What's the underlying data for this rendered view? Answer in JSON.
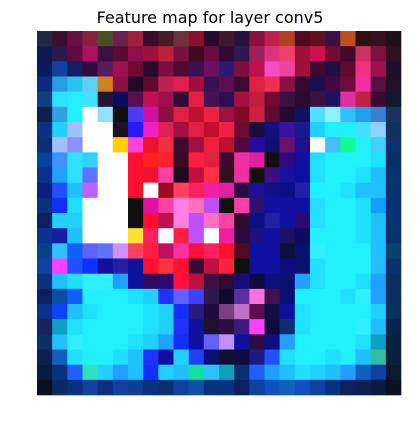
{
  "chart_data": {
    "type": "heatmap",
    "title": "Feature map for layer conv5",
    "axes_visible": false,
    "grid": false,
    "rows": 24,
    "cols": 24,
    "pixels": [
      [
        "#1e2a44",
        "#3a1030",
        "#6a1040",
        "#8a2040",
        "#4a5020",
        "#6a2050",
        "#a0203c",
        "#3a0a2a",
        "#4a1a2a",
        "#703040",
        "#8a1030",
        "#2a0a2a",
        "#401830",
        "#2a1040",
        "#8a1040",
        "#c02050",
        "#b04020",
        "#500a20",
        "#601020",
        "#3a1040",
        "#c05020",
        "#301010",
        "#3a1020",
        "#201018"
      ],
      [
        "#101850",
        "#2a1a50",
        "#600a40",
        "#b01060",
        "#3a1040",
        "#5a0a30",
        "#8a1050",
        "#a0103c",
        "#c0203c",
        "#7a1040",
        "#400a20",
        "#6a0a40",
        "#300a30",
        "#2a1a50",
        "#a0205a",
        "#e03080",
        "#f04070",
        "#a0103c",
        "#d01050",
        "#700a30",
        "#400a28",
        "#d03060",
        "#801040",
        "#301020"
      ],
      [
        "#0a1a60",
        "#1040a0",
        "#102060",
        "#300a40",
        "#5a1a60",
        "#a01050",
        "#700a30",
        "#2a0a28",
        "#7a1040",
        "#500a30",
        "#3a1050",
        "#6a1060",
        "#2a1a70",
        "#7a1040",
        "#c01050",
        "#f050c0",
        "#f040a0",
        "#a0103c",
        "#400a30",
        "#201040",
        "#600a30",
        "#f03080",
        "#a01050",
        "#1a1030"
      ],
      [
        "#0a2a80",
        "#20a0e0",
        "#30c0f0",
        "#60d0f0",
        "#d08020",
        "#8a1040",
        "#200a28",
        "#600a30",
        "#c02050",
        "#e02050",
        "#a0103c",
        "#3a1050",
        "#5a1050",
        "#400a30",
        "#e02040",
        "#f03050",
        "#8a1040",
        "#300a30",
        "#1a1050",
        "#400a40",
        "#700a40",
        "#f030a0",
        "#5a1040",
        "#201028"
      ],
      [
        "#104080",
        "#30e0ff",
        "#20f0ff",
        "#40e0ff",
        "#201830",
        "#0a0a60",
        "#5a1050",
        "#c01050",
        "#a01050",
        "#300a30",
        "#e02040",
        "#4a1050",
        "#2a1050",
        "#a01040",
        "#c02040",
        "#700a30",
        "#3a1040",
        "#2a0a30",
        "#3a1040",
        "#201060",
        "#e030a0",
        "#c0204a",
        "#3a0a30",
        "#101830"
      ],
      [
        "#0a2050",
        "#30a0e0",
        "#20f0ff",
        "#ffffff",
        "#90e0ff",
        "#101010",
        "#4a3aff",
        "#d010a0",
        "#8a1040",
        "#e02040",
        "#c01030",
        "#f02040",
        "#a01040",
        "#800a28",
        "#d02040",
        "#600a30",
        "#200a30",
        "#101060",
        "#50e0ff",
        "#90f0ff",
        "#30c0ff",
        "#20a0f0",
        "#3a80d0",
        "#1a3060"
      ],
      [
        "#0a3080",
        "#20d0ff",
        "#a0c0ff",
        "#ffffff",
        "#ffffff",
        "#201020",
        "#2a1aff",
        "#f020c0",
        "#e02050",
        "#a01040",
        "#e02040",
        "#c01030",
        "#f02040",
        "#700a30",
        "#200a40",
        "#101080",
        "#3a10a0",
        "#1a1a90",
        "#20d0ff",
        "#20f0ff",
        "#20f0ff",
        "#40e0ff",
        "#90d0ff",
        "#103060"
      ],
      [
        "#0a3070",
        "#a0c0ff",
        "#8a90ff",
        "#ffffff",
        "#ffffff",
        "#ffd000",
        "#ff40e0",
        "#f01030",
        "#f03040",
        "#400a30",
        "#a01040",
        "#f02040",
        "#c01030",
        "#500a40",
        "#2a0aa0",
        "#101070",
        "#6a1070",
        "#201090",
        "#ffffff",
        "#40c0ff",
        "#10ff90",
        "#20f0ff",
        "#40d0ff",
        "#103070"
      ],
      [
        "#0a40a0",
        "#4090ff",
        "#30e0ff",
        "#30d0ff",
        "#ffffff",
        "#ffffff",
        "#ff1030",
        "#ff2020",
        "#ff2030",
        "#3a0a20",
        "#ff2040",
        "#e02040",
        "#3a0a30",
        "#f030a0",
        "#e020a0",
        "#101010",
        "#300a80",
        "#1010a0",
        "#20e0ff",
        "#20f0ff",
        "#20f0ff",
        "#20f0ff",
        "#20e0ff",
        "#0a3060"
      ],
      [
        "#0a3090",
        "#20a0ff",
        "#30e0ff",
        "#6070ff",
        "#ffffff",
        "#ffffff",
        "#ff1030",
        "#f01030",
        "#ff40a0",
        "#200a20",
        "#c01040",
        "#ff3040",
        "#301020",
        "#f030a0",
        "#101010",
        "#3a1080",
        "#1a10a0",
        "#1010a0",
        "#20e0ff",
        "#20f0ff",
        "#20f0ff",
        "#20e0ff",
        "#20c0ff",
        "#0a3070"
      ],
      [
        "#0a2080",
        "#2050ff",
        "#20c0ff",
        "#c060ff",
        "#ffffff",
        "#ffffff",
        "#ff1030",
        "#ffffff",
        "#a00a20",
        "#ff4060",
        "#ff2060",
        "#f020a0",
        "#e020a0",
        "#2a0a40",
        "#1a1090",
        "#10108a",
        "#0a1080",
        "#2020a0",
        "#20f0ff",
        "#20f0ff",
        "#20e0ff",
        "#20c0ff",
        "#20c0ff",
        "#0a3070"
      ],
      [
        "#0a3080",
        "#1030ff",
        "#20e0ff",
        "#ffffff",
        "#ffffff",
        "#ffffff",
        "#101010",
        "#e010a0",
        "#ff40a0",
        "#ff80e0",
        "#ff70c0",
        "#c050ff",
        "#101010",
        "#ff40a0",
        "#2a1070",
        "#1010a0",
        "#1010a0",
        "#1010a0",
        "#20e0ff",
        "#20f0ff",
        "#20f0ff",
        "#20e0ff",
        "#10a0ff",
        "#0a3070"
      ],
      [
        "#0a2060",
        "#20d0ff",
        "#20d0ff",
        "#ffffff",
        "#ffffff",
        "#ffffff",
        "#101010",
        "#ff1030",
        "#c01050",
        "#ff80e0",
        "#c050ff",
        "#ff70c0",
        "#ff40a0",
        "#300a30",
        "#0a1080",
        "#2020a0",
        "#1010a0",
        "#2a0a70",
        "#20e0ff",
        "#20f0ff",
        "#20f0ff",
        "#20e0ff",
        "#20c0ff",
        "#0a3070"
      ],
      [
        "#0a3090",
        "#1020a0",
        "#20c0ff",
        "#ffffff",
        "#ffffff",
        "#ffffff",
        "#ffe030",
        "#ff2060",
        "#ffffff",
        "#ff2040",
        "#c050ff",
        "#ffffff",
        "#f020a0",
        "#2a0a40",
        "#1a1080",
        "#1010a0",
        "#201060",
        "#100a60",
        "#20f0ff",
        "#20f0ff",
        "#20f0ff",
        "#20e0ff",
        "#20c0ff",
        "#0a3070"
      ],
      [
        "#0a4090",
        "#30c0ff",
        "#1060ff",
        "#6060ff",
        "#6070ff",
        "#d090ff",
        "#ff4060",
        "#ff2040",
        "#c01060",
        "#ff30a0",
        "#ff1040",
        "#ff2060",
        "#ff1030",
        "#500a20",
        "#0a10a0",
        "#1010a0",
        "#101040",
        "#0a1070",
        "#30f0ff",
        "#20f0ff",
        "#20f0ff",
        "#20f0ff",
        "#20c0ff",
        "#0a4070"
      ],
      [
        "#1040a0",
        "#ff40ff",
        "#2050ff",
        "#1030ff",
        "#1010a0",
        "#2020a0",
        "#1010a0",
        "#ff1030",
        "#ff3040",
        "#ff1030",
        "#3a0a30",
        "#c01040",
        "#ff2040",
        "#101010",
        "#1010a0",
        "#1010a0",
        "#100a80",
        "#0a1070",
        "#20e0ff",
        "#20f0ff",
        "#20f0ff",
        "#20f0ff",
        "#20c0ff",
        "#0a3070"
      ],
      [
        "#0a3080",
        "#20c0ff",
        "#20e0ff",
        "#30f0ff",
        "#30f0ff",
        "#20a0ff",
        "#1010a0",
        "#300a60",
        "#2a0a70",
        "#ff1040",
        "#c01040",
        "#401040",
        "#300a30",
        "#1a0a80",
        "#100a40",
        "#0a1080",
        "#0a1070",
        "#20a0ff",
        "#20e0ff",
        "#20f0ff",
        "#20f0ff",
        "#20e0ff",
        "#20a0ff",
        "#0a3060"
      ],
      [
        "#0a2060",
        "#0a50a0",
        "#1060ff",
        "#20f0ff",
        "#20f0ff",
        "#20f0ff",
        "#20e0ff",
        "#20d0ff",
        "#2030ff",
        "#6060ff",
        "#4040ff",
        "#2a1a50",
        "#100a30",
        "#5a30a0",
        "#ff70e0",
        "#401050",
        "#0a1070",
        "#20f0ff",
        "#20f0ff",
        "#20f0ff",
        "#20e0ff",
        "#30f0ff",
        "#20a0ff",
        "#0a3060"
      ],
      [
        "#0a3090",
        "#1040ff",
        "#20c0ff",
        "#20e0ff",
        "#20f0ff",
        "#20f0ff",
        "#20f0ff",
        "#20e0ff",
        "#20d0ff",
        "#1030ff",
        "#2a1a80",
        "#200a40",
        "#7a4080",
        "#c070c0",
        "#5a1050",
        "#101040",
        "#1010a0",
        "#20e0ff",
        "#20f0ff",
        "#20f0ff",
        "#20f0ff",
        "#20f0ff",
        "#20d0ff",
        "#0a3060"
      ],
      [
        "#1a2060",
        "#10a0c0",
        "#20e0ff",
        "#20f0ff",
        "#20f0ff",
        "#20f0ff",
        "#20f0ff",
        "#20e0ff",
        "#20d0ff",
        "#2030ff",
        "#1010a0",
        "#201030",
        "#2a1040",
        "#3a1a80",
        "#ff40ff",
        "#100a40",
        "#0a3070",
        "#20e0ff",
        "#20f0ff",
        "#20f0ff",
        "#20f0ff",
        "#30f0ff",
        "#20c0ff",
        "#0a2050"
      ],
      [
        "#0a3060",
        "#20c0ff",
        "#30f0ff",
        "#20f0ff",
        "#20f0ff",
        "#20f0ff",
        "#20e0ff",
        "#20d0ff",
        "#20a0ff",
        "#1030ff",
        "#1010a0",
        "#6060ff",
        "#c090ff",
        "#1010a0",
        "#2a1040",
        "#0a1080",
        "#20a0ff",
        "#20f0ff",
        "#20f0ff",
        "#20f0ff",
        "#20f0ff",
        "#20e0ff",
        "#10a0c0",
        "#0a2040"
      ],
      [
        "#0a2050",
        "#1060c0",
        "#20e0ff",
        "#20f0ff",
        "#20f0ff",
        "#20e0ff",
        "#20c0ff",
        "#2030ff",
        "#1010a0",
        "#20d0ff",
        "#2040ff",
        "#0a1070",
        "#101030",
        "#100a40",
        "#1a1a80",
        "#2050ff",
        "#20e0ff",
        "#20f0ff",
        "#20f0ff",
        "#20e0ff",
        "#20f0ff",
        "#20c0ff",
        "#30c0a0",
        "#0a2040"
      ],
      [
        "#0a1a40",
        "#0a3080",
        "#2060ff",
        "#30e0c0",
        "#20d0ff",
        "#20a0ff",
        "#20c0ff",
        "#1030ff",
        "#20d0ff",
        "#20c0ff",
        "#10e0a0",
        "#30c0ff",
        "#10a0c0",
        "#0a3070",
        "#2060ff",
        "#20a0ff",
        "#20c0ff",
        "#20e0ff",
        "#20d0ff",
        "#20c0ff",
        "#20a0ff",
        "#1060c0",
        "#1040a0",
        "#0a1a30"
      ],
      [
        "#0a1020",
        "#0a2a60",
        "#0a3080",
        "#1040a0",
        "#0a3080",
        "#1040a0",
        "#0a4090",
        "#0a3080",
        "#0a3070",
        "#1040a0",
        "#1050a0",
        "#0a3080",
        "#0a3080",
        "#0a2060",
        "#1040a0",
        "#1050c0",
        "#1060c0",
        "#1050c0",
        "#1040a0",
        "#0a3080",
        "#0a2060",
        "#0a2050",
        "#0a1a40",
        "#0a1020"
      ]
    ]
  }
}
